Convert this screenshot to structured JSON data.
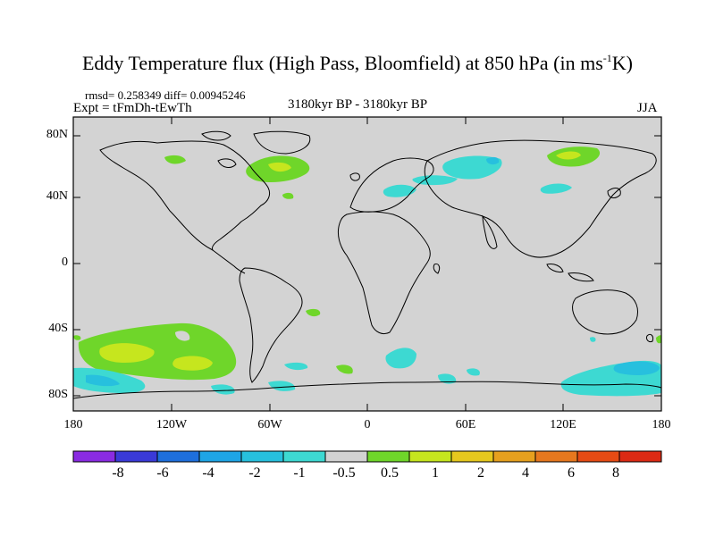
{
  "title": {
    "main": "Eddy Temperature flux (High Pass, Bloomfield) at 850 hPa (in ms",
    "sup": "-1",
    "end": "K)"
  },
  "subtitle": {
    "stats": "rmsd= 0.258349 diff= 0.00945246",
    "experiment": "Expt = tFmDh-tEwTh",
    "period": "3180kyr BP - 3180kyr BP",
    "season": "JJA"
  },
  "axes": {
    "y_ticks": [
      "80N",
      "40N",
      "0",
      "40S",
      "80S"
    ],
    "x_ticks": [
      "180",
      "120W",
      "60W",
      "0",
      "60E",
      "120E",
      "180"
    ]
  },
  "colorbar": {
    "colors": [
      "#8a2be2",
      "#3a3ad8",
      "#1e6fdc",
      "#1ea5e6",
      "#27c0de",
      "#3dd9d2",
      "#d2d2d2",
      "#6fd62a",
      "#c6e61e",
      "#e6c81e",
      "#e6a01e",
      "#e6781e",
      "#e64b14",
      "#dc2a14"
    ],
    "labels": [
      "-8",
      "-6",
      "-4",
      "-2",
      "-1",
      "-0.5",
      "0.5",
      "1",
      "2",
      "4",
      "6",
      "8"
    ]
  },
  "map": {
    "background": "#d3d3d3",
    "ocean_land_lines": "#000000"
  }
}
